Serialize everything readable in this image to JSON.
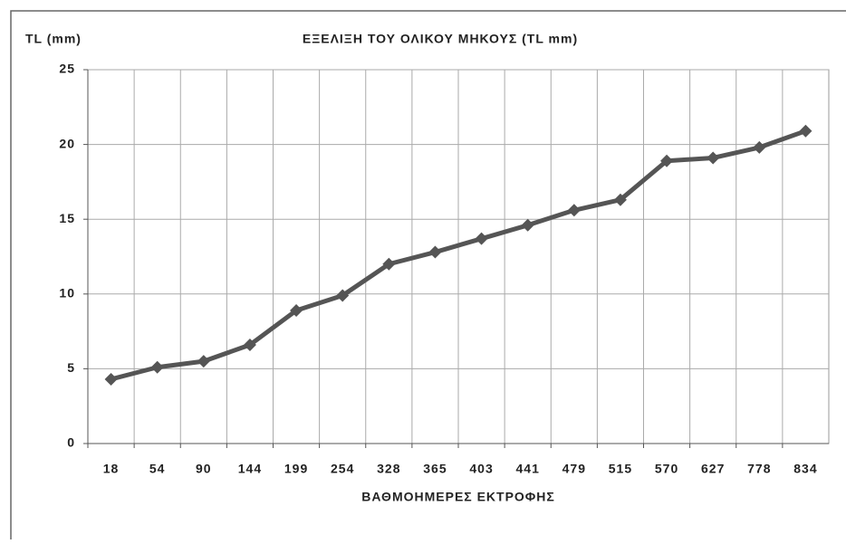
{
  "chart_data": {
    "type": "line",
    "title": "ΕΞΕΛΙΞΗ ΤΟΥ ΟΛΙΚΟΥ ΜΗΚΟΥΣ (TL mm)",
    "y_label": "TL (mm)",
    "x_label": "ΒΑΘΜΟΗΜΕΡΕΣ ΕΚΤΡΟΦΗΣ",
    "categories": [
      "18",
      "54",
      "90",
      "144",
      "199",
      "254",
      "328",
      "365",
      "403",
      "441",
      "479",
      "515",
      "570",
      "627",
      "778",
      "834"
    ],
    "series": [
      {
        "name": "TL",
        "color": "#555555",
        "values": [
          4.3,
          5.1,
          5.5,
          6.6,
          8.9,
          9.9,
          12.0,
          12.8,
          13.7,
          14.6,
          15.6,
          16.3,
          18.9,
          19.1,
          19.8,
          20.9
        ]
      }
    ],
    "ylim": [
      0,
      25
    ],
    "yticks": [
      0,
      5,
      10,
      15,
      20,
      25
    ],
    "grid": true
  }
}
